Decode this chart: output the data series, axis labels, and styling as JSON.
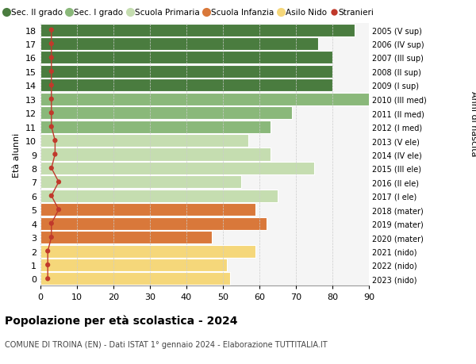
{
  "ages": [
    18,
    17,
    16,
    15,
    14,
    13,
    12,
    11,
    10,
    9,
    8,
    7,
    6,
    5,
    4,
    3,
    2,
    1,
    0
  ],
  "bar_values": [
    86,
    76,
    80,
    80,
    80,
    91,
    69,
    63,
    57,
    63,
    75,
    55,
    65,
    59,
    62,
    47,
    59,
    51,
    52
  ],
  "stranieri_values": [
    3,
    3,
    3,
    3,
    3,
    3,
    3,
    3,
    4,
    4,
    3,
    5,
    3,
    5,
    3,
    3,
    2,
    2,
    2
  ],
  "right_labels": [
    "2005 (V sup)",
    "2006 (IV sup)",
    "2007 (III sup)",
    "2008 (II sup)",
    "2009 (I sup)",
    "2010 (III med)",
    "2011 (II med)",
    "2012 (I med)",
    "2013 (V ele)",
    "2014 (IV ele)",
    "2015 (III ele)",
    "2016 (II ele)",
    "2017 (I ele)",
    "2018 (mater)",
    "2019 (mater)",
    "2020 (mater)",
    "2021 (nido)",
    "2022 (nido)",
    "2023 (nido)"
  ],
  "bar_colors": [
    "#4a7c3f",
    "#4a7c3f",
    "#4a7c3f",
    "#4a7c3f",
    "#4a7c3f",
    "#8ab87a",
    "#8ab87a",
    "#8ab87a",
    "#c5ddb0",
    "#c5ddb0",
    "#c5ddb0",
    "#c5ddb0",
    "#c5ddb0",
    "#d9783a",
    "#d9783a",
    "#d9783a",
    "#f5d77a",
    "#f5d77a",
    "#f5d77a"
  ],
  "stranieri_color": "#c0392b",
  "grid_color": "#cccccc",
  "bg_color": "#f5f5f5",
  "legend_items": [
    {
      "label": "Sec. II grado",
      "color": "#4a7c3f"
    },
    {
      "label": "Sec. I grado",
      "color": "#8ab87a"
    },
    {
      "label": "Scuola Primaria",
      "color": "#c5ddb0"
    },
    {
      "label": "Scuola Infanzia",
      "color": "#d9783a"
    },
    {
      "label": "Asilo Nido",
      "color": "#f5d77a"
    },
    {
      "label": "Stranieri",
      "color": "#c0392b"
    }
  ],
  "ylabel_left": "Età alunni",
  "ylabel_right": "Anni di nascita",
  "title": "Popolazione per età scolastica - 2024",
  "subtitle": "COMUNE DI TROINA (EN) - Dati ISTAT 1° gennaio 2024 - Elaborazione TUTTITALIA.IT",
  "xlim": [
    0,
    90
  ],
  "xticks": [
    0,
    10,
    20,
    30,
    40,
    50,
    60,
    70,
    80,
    90
  ]
}
